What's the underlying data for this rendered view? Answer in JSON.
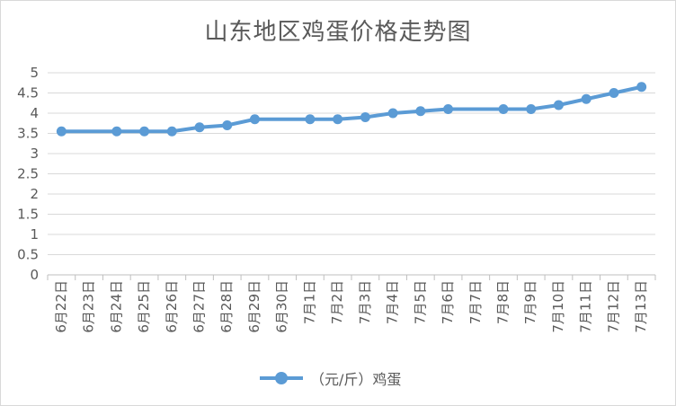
{
  "chart_data": {
    "type": "line",
    "title": "山东地区鸡蛋价格走势图",
    "categories": [
      "6月22日",
      "6月23日",
      "6月24日",
      "6月25日",
      "6月26日",
      "6月27日",
      "6月28日",
      "6月29日",
      "6月30日",
      "7月1日",
      "7月2日",
      "7月3日",
      "7月4日",
      "7月5日",
      "7月6日",
      "7月7日",
      "7月8日",
      "7月9日",
      "7月10日",
      "7月11日",
      "7月12日",
      "7月13日"
    ],
    "series": [
      {
        "name": "（元/斤）鸡蛋",
        "color": "#5b9bd5",
        "values": [
          3.55,
          null,
          3.55,
          3.55,
          3.55,
          3.65,
          3.7,
          3.85,
          null,
          3.85,
          3.85,
          3.9,
          4.0,
          4.05,
          4.1,
          null,
          4.1,
          4.1,
          4.2,
          4.35,
          4.5,
          4.65
        ]
      }
    ],
    "yticks": [
      "0",
      "0.5",
      "1",
      "1.5",
      "2",
      "2.5",
      "3",
      "3.5",
      "4",
      "4.5",
      "5"
    ],
    "ylim": [
      0,
      5
    ],
    "grid": true,
    "legend_position": "bottom",
    "xlabel": "",
    "ylabel": ""
  }
}
